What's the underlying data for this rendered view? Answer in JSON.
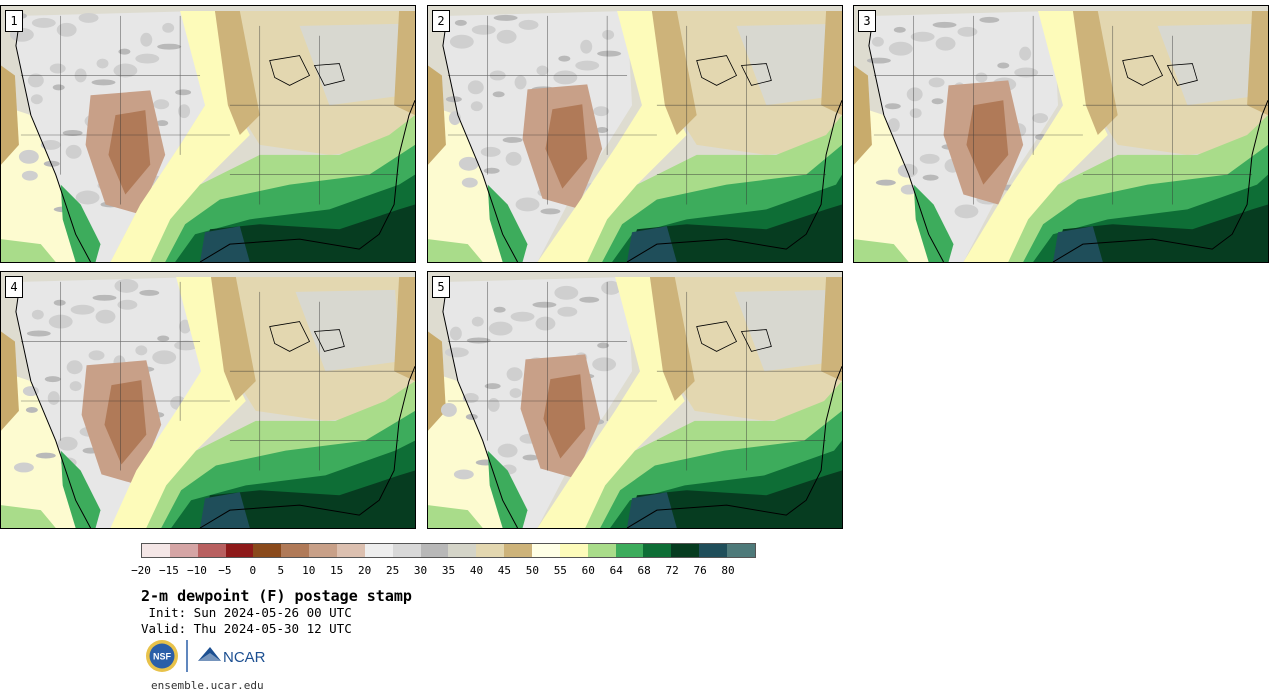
{
  "panels": [
    {
      "label": "1"
    },
    {
      "label": "2"
    },
    {
      "label": "3"
    },
    {
      "label": "4"
    },
    {
      "label": "5"
    }
  ],
  "legend": {
    "colors": [
      "#f4e6e6",
      "#d5a5a5",
      "#b86060",
      "#8e1a1a",
      "#8a4a1c",
      "#b07a58",
      "#c8a088",
      "#dcc0b0",
      "#eeeeee",
      "#d8d8d8",
      "#b8b8b8",
      "#d4d4c8",
      "#e3d7b0",
      "#cdb37a",
      "#ffffe6",
      "#fdfbba",
      "#a9dc8a",
      "#3dac5c",
      "#0e6e36",
      "#063c20",
      "#1f4e5a",
      "#4e7a7a"
    ],
    "tick_labels": [
      "−20",
      "−15",
      "−10",
      "−5",
      "0",
      "5",
      "10",
      "15",
      "20",
      "25",
      "30",
      "35",
      "40",
      "45",
      "50",
      "55",
      "60",
      "64",
      "68",
      "72",
      "76",
      "80"
    ]
  },
  "info": {
    "title": "2-m dewpoint (F) postage stamp",
    "init": " Init: Sun 2024-05-26 00 UTC",
    "valid": "Valid: Thu 2024-05-30 12 UTC",
    "url": "ensemble.ucar.edu",
    "logo_left": "NSF",
    "logo_right": "NCAR"
  }
}
